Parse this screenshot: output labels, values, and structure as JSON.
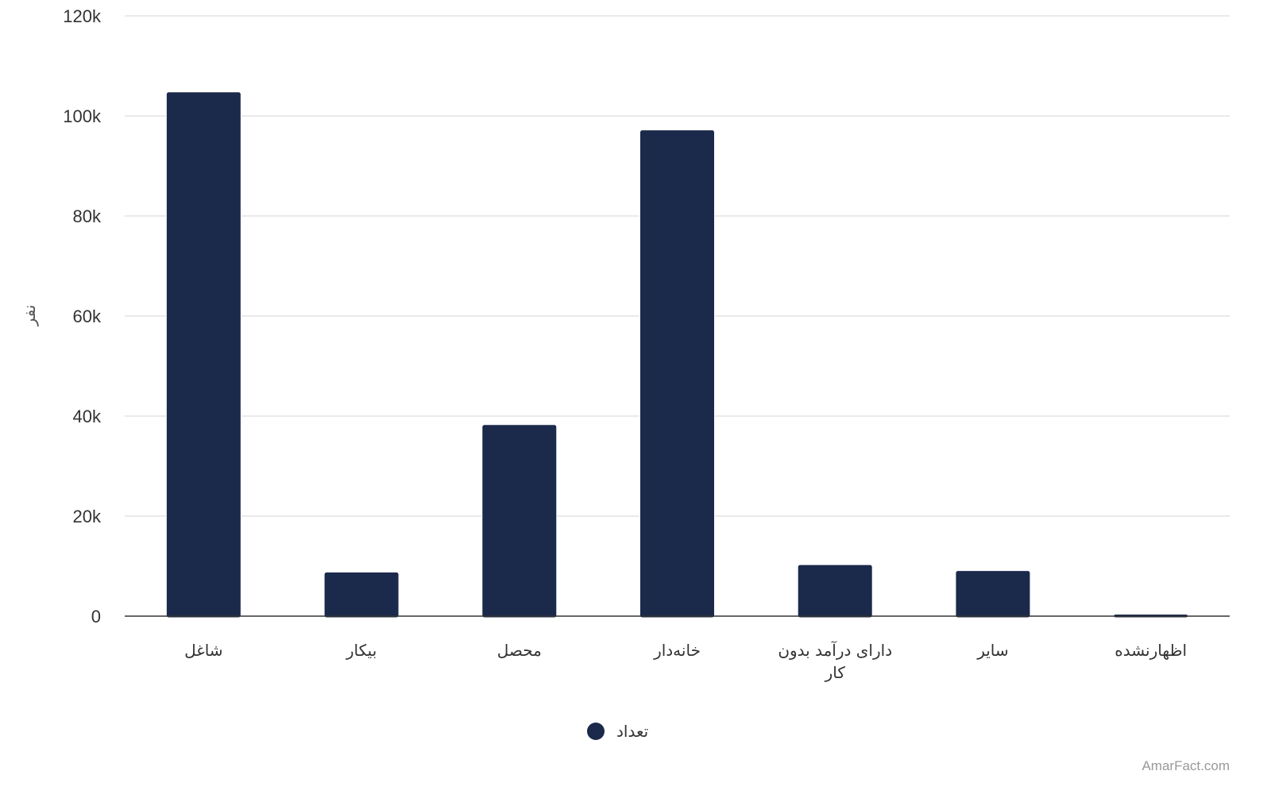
{
  "chart_data": {
    "type": "bar",
    "categories": [
      "شاغل",
      "بیکار",
      "محصل",
      "خانه‌دار",
      "دارای درآمد بدون کار",
      "سایر",
      "اظهارنشده"
    ],
    "category_lines": [
      [
        "شاغل"
      ],
      [
        "بیکار"
      ],
      [
        "محصل"
      ],
      [
        "خانه‌دار"
      ],
      [
        "دارای درآمد بدون",
        "کار"
      ],
      [
        "سایر"
      ],
      [
        "اظهارنشده"
      ]
    ],
    "series": [
      {
        "name": "تعداد",
        "values": [
          104800,
          8800,
          38300,
          97200,
          10300,
          9100,
          400
        ]
      }
    ],
    "ylabel": "نفر",
    "ylim": [
      0,
      120000
    ],
    "yticks": [
      0,
      20000,
      40000,
      60000,
      80000,
      100000,
      120000
    ],
    "ytick_labels": [
      "0",
      "20k",
      "40k",
      "60k",
      "80k",
      "100k",
      "120k"
    ],
    "grid": true,
    "legend_position": "bottom-center",
    "bar_color": "#1b294b"
  },
  "credit": "AmarFact.com"
}
